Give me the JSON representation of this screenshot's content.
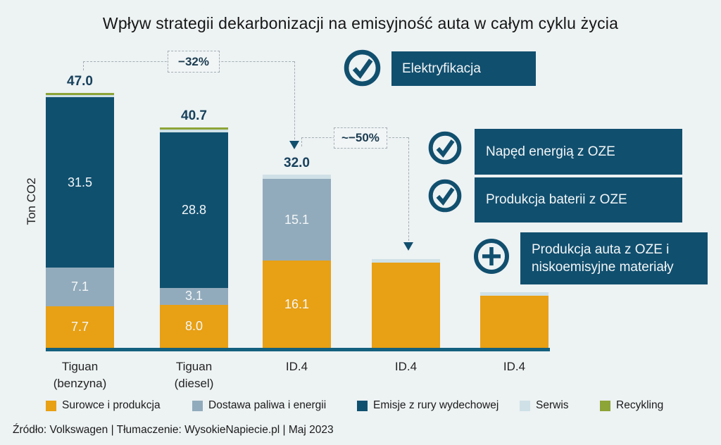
{
  "title": "Wpływ strategii dekarbonizacji na emisyjność auta w całym cyklu życia",
  "y_axis_label": "Ton CO2",
  "footer": "Źródło: Volkswagen  |  Tłumaczenie: WysokieNapiecie.pl  |  Maj 2023",
  "colors": {
    "background": "#EDF2F3",
    "accent_dark_blue": "#114F6E",
    "baseline": "#14607F",
    "orange": "#E8A014",
    "fuel_energy_blue": "#92ABBC",
    "service_light_blue": "#CFE1E7",
    "recycling_green": "#8DA437"
  },
  "chart_data": {
    "type": "bar",
    "stacked": true,
    "title": "Wpływ strategii dekarbonizacji na emisyjność auta w całym cyklu życia",
    "ylabel": "Ton CO2",
    "grid": false,
    "legend_position": "bottom",
    "categories": [
      "Tiguan (benzyna)",
      "Tiguan (diesel)",
      "ID.4",
      "ID.4",
      "ID.4"
    ],
    "category_display": [
      "Tiguan\n(benzyna)",
      "Tiguan\n(diesel)",
      "ID.4",
      "ID.4",
      "ID.4"
    ],
    "series": [
      {
        "name": "Surowce i produkcja",
        "color": "#E8A014",
        "values": [
          7.7,
          8.0,
          16.1,
          15.8,
          9.7
        ]
      },
      {
        "name": "Dostawa paliwa i energii",
        "color": "#92ABBC",
        "values": [
          7.1,
          3.1,
          15.1,
          0,
          0
        ]
      },
      {
        "name": "Emisje z rury wydechowej",
        "color": "#10506F",
        "values": [
          31.5,
          28.8,
          0,
          0,
          0
        ]
      },
      {
        "name": "Serwis",
        "color": "#CFE1E7",
        "values": [
          0.5,
          0.5,
          0.8,
          0.6,
          0.6
        ]
      },
      {
        "name": "Recykling",
        "color": "#8DA437",
        "values": [
          0.3,
          0.3,
          0,
          0,
          0
        ]
      }
    ],
    "totals": [
      47.0,
      40.7,
      32.0,
      null,
      null
    ],
    "total_labels": [
      "47.0",
      "40.7",
      "32.0",
      "",
      ""
    ],
    "segment_labels": [
      [
        "7.7",
        "7.1",
        "31.5",
        "",
        ""
      ],
      [
        "8.0",
        "3.1",
        "28.8",
        "",
        ""
      ],
      [
        "16.1",
        "15.1",
        "",
        "",
        ""
      ],
      [
        "",
        "",
        "",
        "",
        ""
      ],
      [
        "",
        "",
        "",
        "",
        ""
      ]
    ],
    "annotations": [
      {
        "label": "−32%",
        "from_category_index": 0,
        "to_category_index": 2
      },
      {
        "label": "~−50%",
        "from_category_index": 2,
        "to_category_index": 3
      }
    ]
  },
  "callouts": [
    {
      "icon": "check-circle",
      "text": "Elektryfikacja"
    },
    {
      "icon": "check-circle",
      "text": "Napęd energią z OZE"
    },
    {
      "icon": "check-circle",
      "text": "Produkcja baterii z OZE"
    },
    {
      "icon": "plus-circle",
      "text": "Produkcja auta z OZE i\nniskoemisyjne materiały"
    }
  ]
}
